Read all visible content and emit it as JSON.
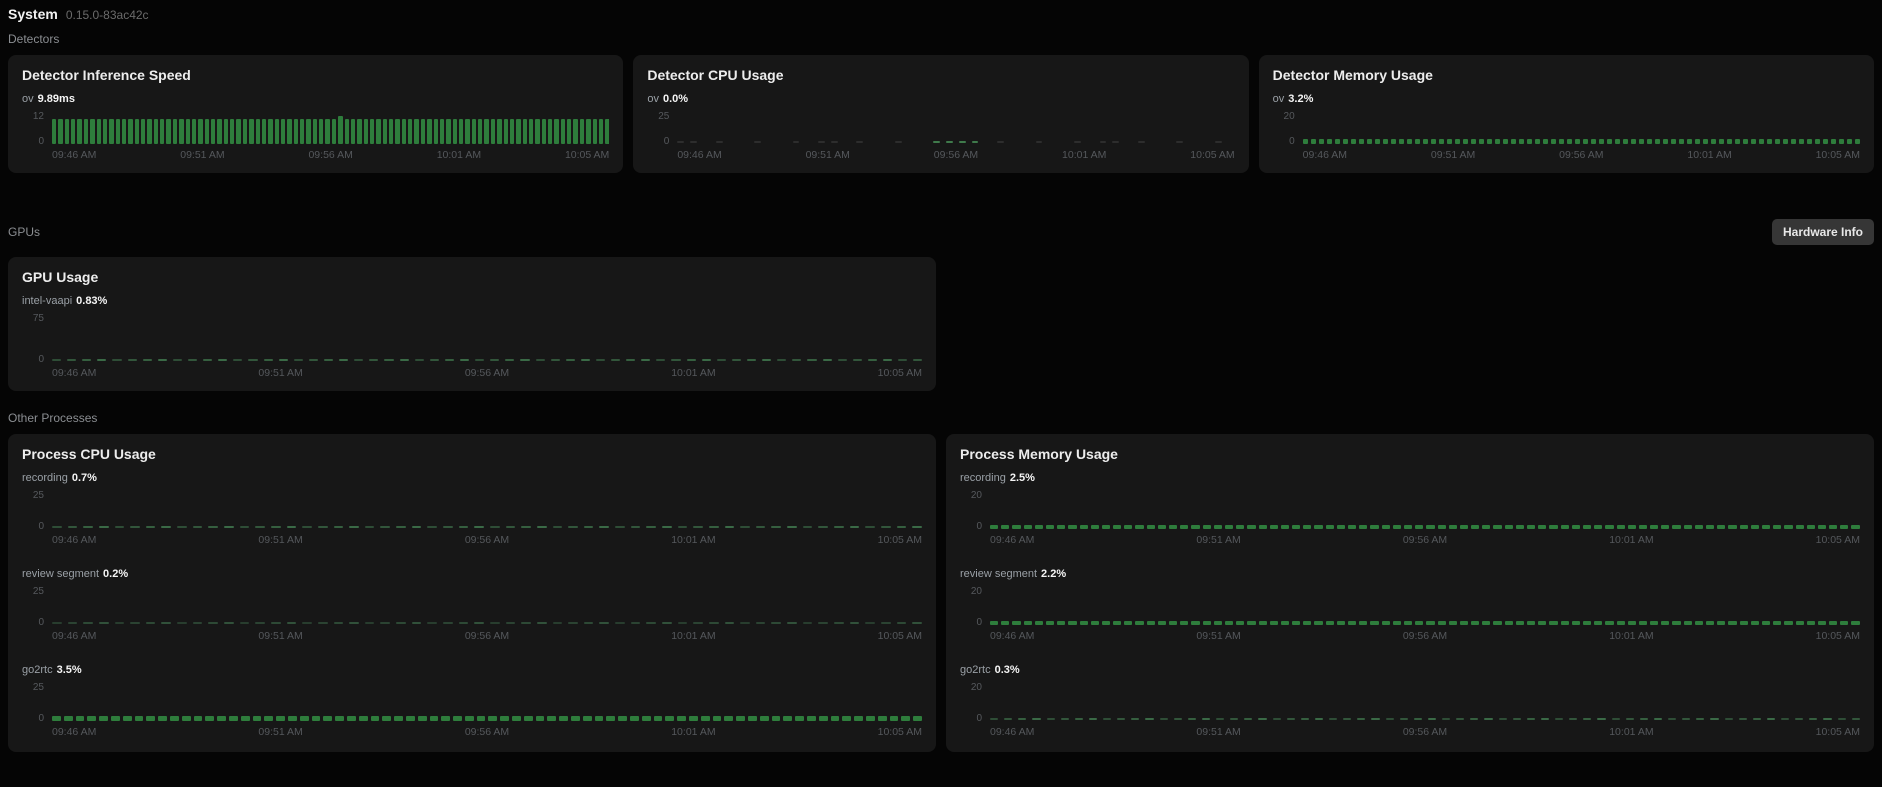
{
  "page": {
    "title": "System",
    "version": "0.15.0-83ac42c"
  },
  "time_axis": [
    "09:46 AM",
    "09:51 AM",
    "09:56 AM",
    "10:01 AM",
    "10:05 AM"
  ],
  "sections": {
    "detectors": {
      "label": "Detectors"
    },
    "gpus": {
      "label": "GPUs",
      "hardware_info_button": "Hardware Info"
    },
    "other_processes": {
      "label": "Other Processes"
    }
  },
  "cards": {
    "detector_inference": {
      "title": "Detector Inference Speed",
      "series": [
        {
          "name": "ov",
          "display_value": "9.89ms",
          "chart": {
            "type": "bar",
            "style": "bars",
            "ymax": 12,
            "yticks": [
              "12",
              "0"
            ],
            "approx_value": 9.9,
            "unit": "ms",
            "count": 88,
            "color": "#2e7d3c",
            "peak_pct": 52,
            "peak_scale": 1.13
          }
        }
      ]
    },
    "detector_cpu": {
      "title": "Detector CPU Usage",
      "series": [
        {
          "name": "ov",
          "display_value": "0.0%",
          "chart": {
            "type": "bar",
            "style": "sparse-dashes",
            "ymax": 25,
            "yticks": [
              "25",
              "0"
            ],
            "approx_value": 0.1,
            "unit": "%",
            "count": 44,
            "color": "#2d2d2d",
            "accent_color": "#3f7a4b"
          }
        }
      ]
    },
    "detector_memory": {
      "title": "Detector Memory Usage",
      "series": [
        {
          "name": "ov",
          "display_value": "3.2%",
          "chart": {
            "type": "bar",
            "style": "bars",
            "ymax": 20,
            "yticks": [
              "20",
              "0"
            ],
            "approx_value": 3.2,
            "unit": "%",
            "count": 70,
            "color": "#2e7d3c"
          }
        }
      ]
    },
    "gpu_usage": {
      "title": "GPU Usage",
      "series": [
        {
          "name": "intel-vaapi",
          "display_value": "0.83%",
          "chart": {
            "type": "bar",
            "style": "dashes",
            "ymax": 75,
            "yticks": [
              "75",
              "0"
            ],
            "approx_value": 0.83,
            "unit": "%",
            "count": 58,
            "color": "#3a6a46"
          }
        }
      ]
    },
    "process_cpu": {
      "title": "Process CPU Usage",
      "series": [
        {
          "name": "recording",
          "display_value": "0.7%",
          "chart": {
            "type": "bar",
            "style": "dashes",
            "ymax": 25,
            "yticks": [
              "25",
              "0"
            ],
            "approx_value": 0.7,
            "unit": "%",
            "count": 56,
            "color": "#3a6a46"
          }
        },
        {
          "name": "review segment",
          "display_value": "0.2%",
          "chart": {
            "type": "bar",
            "style": "dashes",
            "ymax": 25,
            "yticks": [
              "25",
              "0"
            ],
            "approx_value": 0.2,
            "unit": "%",
            "count": 56,
            "color": "#31513a"
          }
        },
        {
          "name": "go2rtc",
          "display_value": "3.5%",
          "chart": {
            "type": "bar",
            "style": "bars",
            "ymax": 25,
            "yticks": [
              "25",
              "0"
            ],
            "approx_value": 3.5,
            "unit": "%",
            "count": 74,
            "color": "#2e7d3c"
          }
        }
      ]
    },
    "process_memory": {
      "title": "Process Memory Usage",
      "series": [
        {
          "name": "recording",
          "display_value": "2.5%",
          "chart": {
            "type": "bar",
            "style": "bars",
            "ymax": 20,
            "yticks": [
              "20",
              "0"
            ],
            "approx_value": 2.5,
            "unit": "%",
            "count": 78,
            "color": "#2e7d3c"
          }
        },
        {
          "name": "review segment",
          "display_value": "2.2%",
          "chart": {
            "type": "bar",
            "style": "bars",
            "ymax": 20,
            "yticks": [
              "20",
              "0"
            ],
            "approx_value": 2.2,
            "unit": "%",
            "count": 78,
            "color": "#2e7d3c"
          }
        },
        {
          "name": "go2rtc",
          "display_value": "0.3%",
          "chart": {
            "type": "bar",
            "style": "dashes",
            "ymax": 20,
            "yticks": [
              "20",
              "0"
            ],
            "approx_value": 0.3,
            "unit": "%",
            "count": 62,
            "color": "#3a6a46"
          }
        }
      ]
    }
  }
}
